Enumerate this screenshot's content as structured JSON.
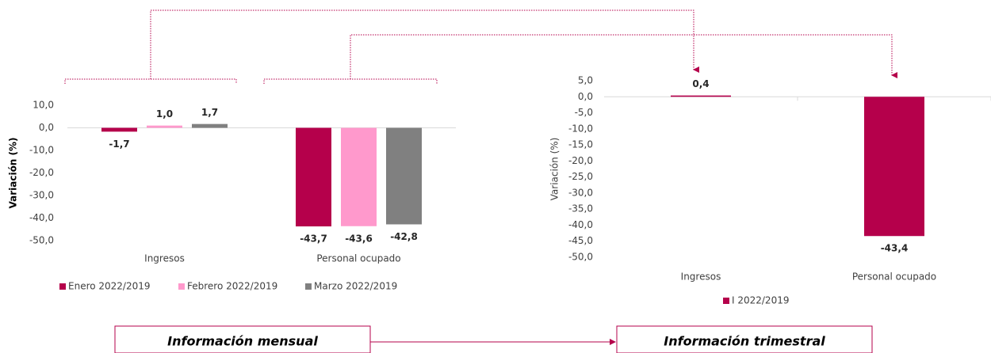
{
  "chart_data": [
    {
      "type": "bar",
      "ylabel": "Variación (%)",
      "categories": [
        "Ingresos",
        "Personal ocupado"
      ],
      "series": [
        {
          "name": "Enero 2022/2019",
          "color": "#b5004b",
          "values": [
            -1.7,
            -43.7
          ],
          "value_labels": [
            "-1,7",
            "-43,7"
          ]
        },
        {
          "name": "Febrero 2022/2019",
          "color": "#ff99cc",
          "values": [
            1.0,
            -43.6
          ],
          "value_labels": [
            "1,0",
            "-43,6"
          ]
        },
        {
          "name": "Marzo 2022/2019",
          "color": "#808080",
          "values": [
            1.7,
            -42.8
          ],
          "value_labels": [
            "1,7",
            "-42,8"
          ]
        }
      ],
      "ylim": [
        -50,
        10
      ],
      "yticks": [
        {
          "value": 10,
          "label": "10,0"
        },
        {
          "value": 0,
          "label": "0,0"
        },
        {
          "value": -10,
          "label": "-10,0"
        },
        {
          "value": -20,
          "label": "-20,0"
        },
        {
          "value": -30,
          "label": "-30,0"
        },
        {
          "value": -40,
          "label": "-40,0"
        },
        {
          "value": -50,
          "label": "-50,0"
        }
      ],
      "grid": false,
      "legend": "bottom"
    },
    {
      "type": "bar",
      "ylabel": "Variación (%)",
      "categories": [
        "Ingresos",
        "Personal ocupado"
      ],
      "series": [
        {
          "name": "I 2022/2019",
          "color": "#b5004b",
          "values": [
            0.4,
            -43.4
          ],
          "value_labels": [
            "0,4",
            "-43,4"
          ]
        }
      ],
      "ylim": [
        -50,
        5
      ],
      "yticks": [
        {
          "value": 5,
          "label": "5,0"
        },
        {
          "value": 0,
          "label": "0,0"
        },
        {
          "value": -5,
          "label": "-5,0"
        },
        {
          "value": -10,
          "label": "-10,0"
        },
        {
          "value": -15,
          "label": "-15,0"
        },
        {
          "value": -20,
          "label": "-20,0"
        },
        {
          "value": -25,
          "label": "-25,0"
        },
        {
          "value": -30,
          "label": "-30,0"
        },
        {
          "value": -35,
          "label": "-35,0"
        },
        {
          "value": -40,
          "label": "-40,0"
        },
        {
          "value": -45,
          "label": "-45,0"
        },
        {
          "value": -50,
          "label": "-50,0"
        }
      ],
      "grid": false,
      "legend": "bottom"
    }
  ],
  "labels": [
    "Información mensual",
    "Información trimestral"
  ]
}
